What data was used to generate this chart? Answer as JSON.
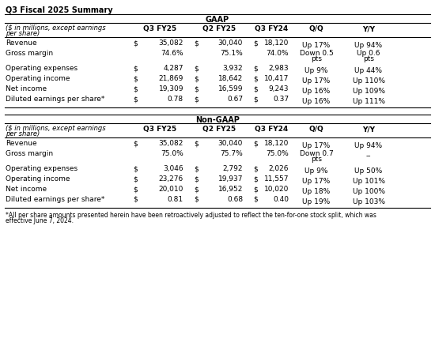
{
  "title": "Q3 Fiscal 2025 Summary",
  "bg_color": "#ffffff",
  "sections": [
    {
      "header": "GAAP",
      "rows": [
        {
          "label": "Revenue",
          "has_dollar": true,
          "v1": "35,082",
          "v2": "30,040",
          "v3": "18,120",
          "qoq": [
            "Up 17%"
          ],
          "yoy": [
            "Up 94%"
          ]
        },
        {
          "label": "Gross margin",
          "has_dollar": false,
          "v1": "74.6%",
          "v2": "75.1%",
          "v3": "74.0%",
          "qoq": [
            "Down 0.5",
            "pts"
          ],
          "yoy": [
            "Up 0.6",
            "pts"
          ]
        },
        {
          "label": "Operating expenses",
          "has_dollar": true,
          "v1": "4,287",
          "v2": "3,932",
          "v3": "2,983",
          "qoq": [
            "Up 9%"
          ],
          "yoy": [
            "Up 44%"
          ]
        },
        {
          "label": "Operating income",
          "has_dollar": true,
          "v1": "21,869",
          "v2": "18,642",
          "v3": "10,417",
          "qoq": [
            "Up 17%"
          ],
          "yoy": [
            "Up 110%"
          ]
        },
        {
          "label": "Net income",
          "has_dollar": true,
          "v1": "19,309",
          "v2": "16,599",
          "v3": "9,243",
          "qoq": [
            "Up 16%"
          ],
          "yoy": [
            "Up 109%"
          ]
        },
        {
          "label": "Diluted earnings per share*",
          "has_dollar": true,
          "v1": "0.78",
          "v2": "0.67",
          "v3": "0.37",
          "qoq": [
            "Up 16%"
          ],
          "yoy": [
            "Up 111%"
          ]
        }
      ]
    },
    {
      "header": "Non-GAAP",
      "rows": [
        {
          "label": "Revenue",
          "has_dollar": true,
          "v1": "35,082",
          "v2": "30,040",
          "v3": "18,120",
          "qoq": [
            "Up 17%"
          ],
          "yoy": [
            "Up 94%"
          ]
        },
        {
          "label": "Gross margin",
          "has_dollar": false,
          "v1": "75.0%",
          "v2": "75.7%",
          "v3": "75.0%",
          "qoq": [
            "Down 0.7",
            "pts"
          ],
          "yoy": [
            "--"
          ]
        },
        {
          "label": "Operating expenses",
          "has_dollar": true,
          "v1": "3,046",
          "v2": "2,792",
          "v3": "2,026",
          "qoq": [
            "Up 9%"
          ],
          "yoy": [
            "Up 50%"
          ]
        },
        {
          "label": "Operating income",
          "has_dollar": true,
          "v1": "23,276",
          "v2": "19,937",
          "v3": "11,557",
          "qoq": [
            "Up 17%"
          ],
          "yoy": [
            "Up 101%"
          ]
        },
        {
          "label": "Net income",
          "has_dollar": true,
          "v1": "20,010",
          "v2": "16,952",
          "v3": "10,020",
          "qoq": [
            "Up 18%"
          ],
          "yoy": [
            "Up 100%"
          ]
        },
        {
          "label": "Diluted earnings per share*",
          "has_dollar": true,
          "v1": "0.81",
          "v2": "0.68",
          "v3": "0.40",
          "qoq": [
            "Up 19%"
          ],
          "yoy": [
            "Up 103%"
          ]
        }
      ]
    }
  ],
  "footnote_lines": [
    "*All per share amounts presented herein have been retroactively adjusted to reflect the ten-for-one stock split, which was",
    "effective June 7, 2024."
  ],
  "col_subtitle_line1": "($ in millions, except earnings",
  "col_subtitle_line2": "per share)",
  "col_headers": [
    "Q3 FY25",
    "Q2 FY25",
    "Q3 FY24",
    "Q/Q",
    "Y/Y"
  ],
  "fs_title": 7.0,
  "fs_section": 7.0,
  "fs_col_header": 6.5,
  "fs_body": 6.5,
  "fs_subtitle": 6.0,
  "fs_footnote": 5.5,
  "lw_border": 0.8,
  "fig_w": 5.5,
  "fig_h": 4.43,
  "dpi": 100
}
